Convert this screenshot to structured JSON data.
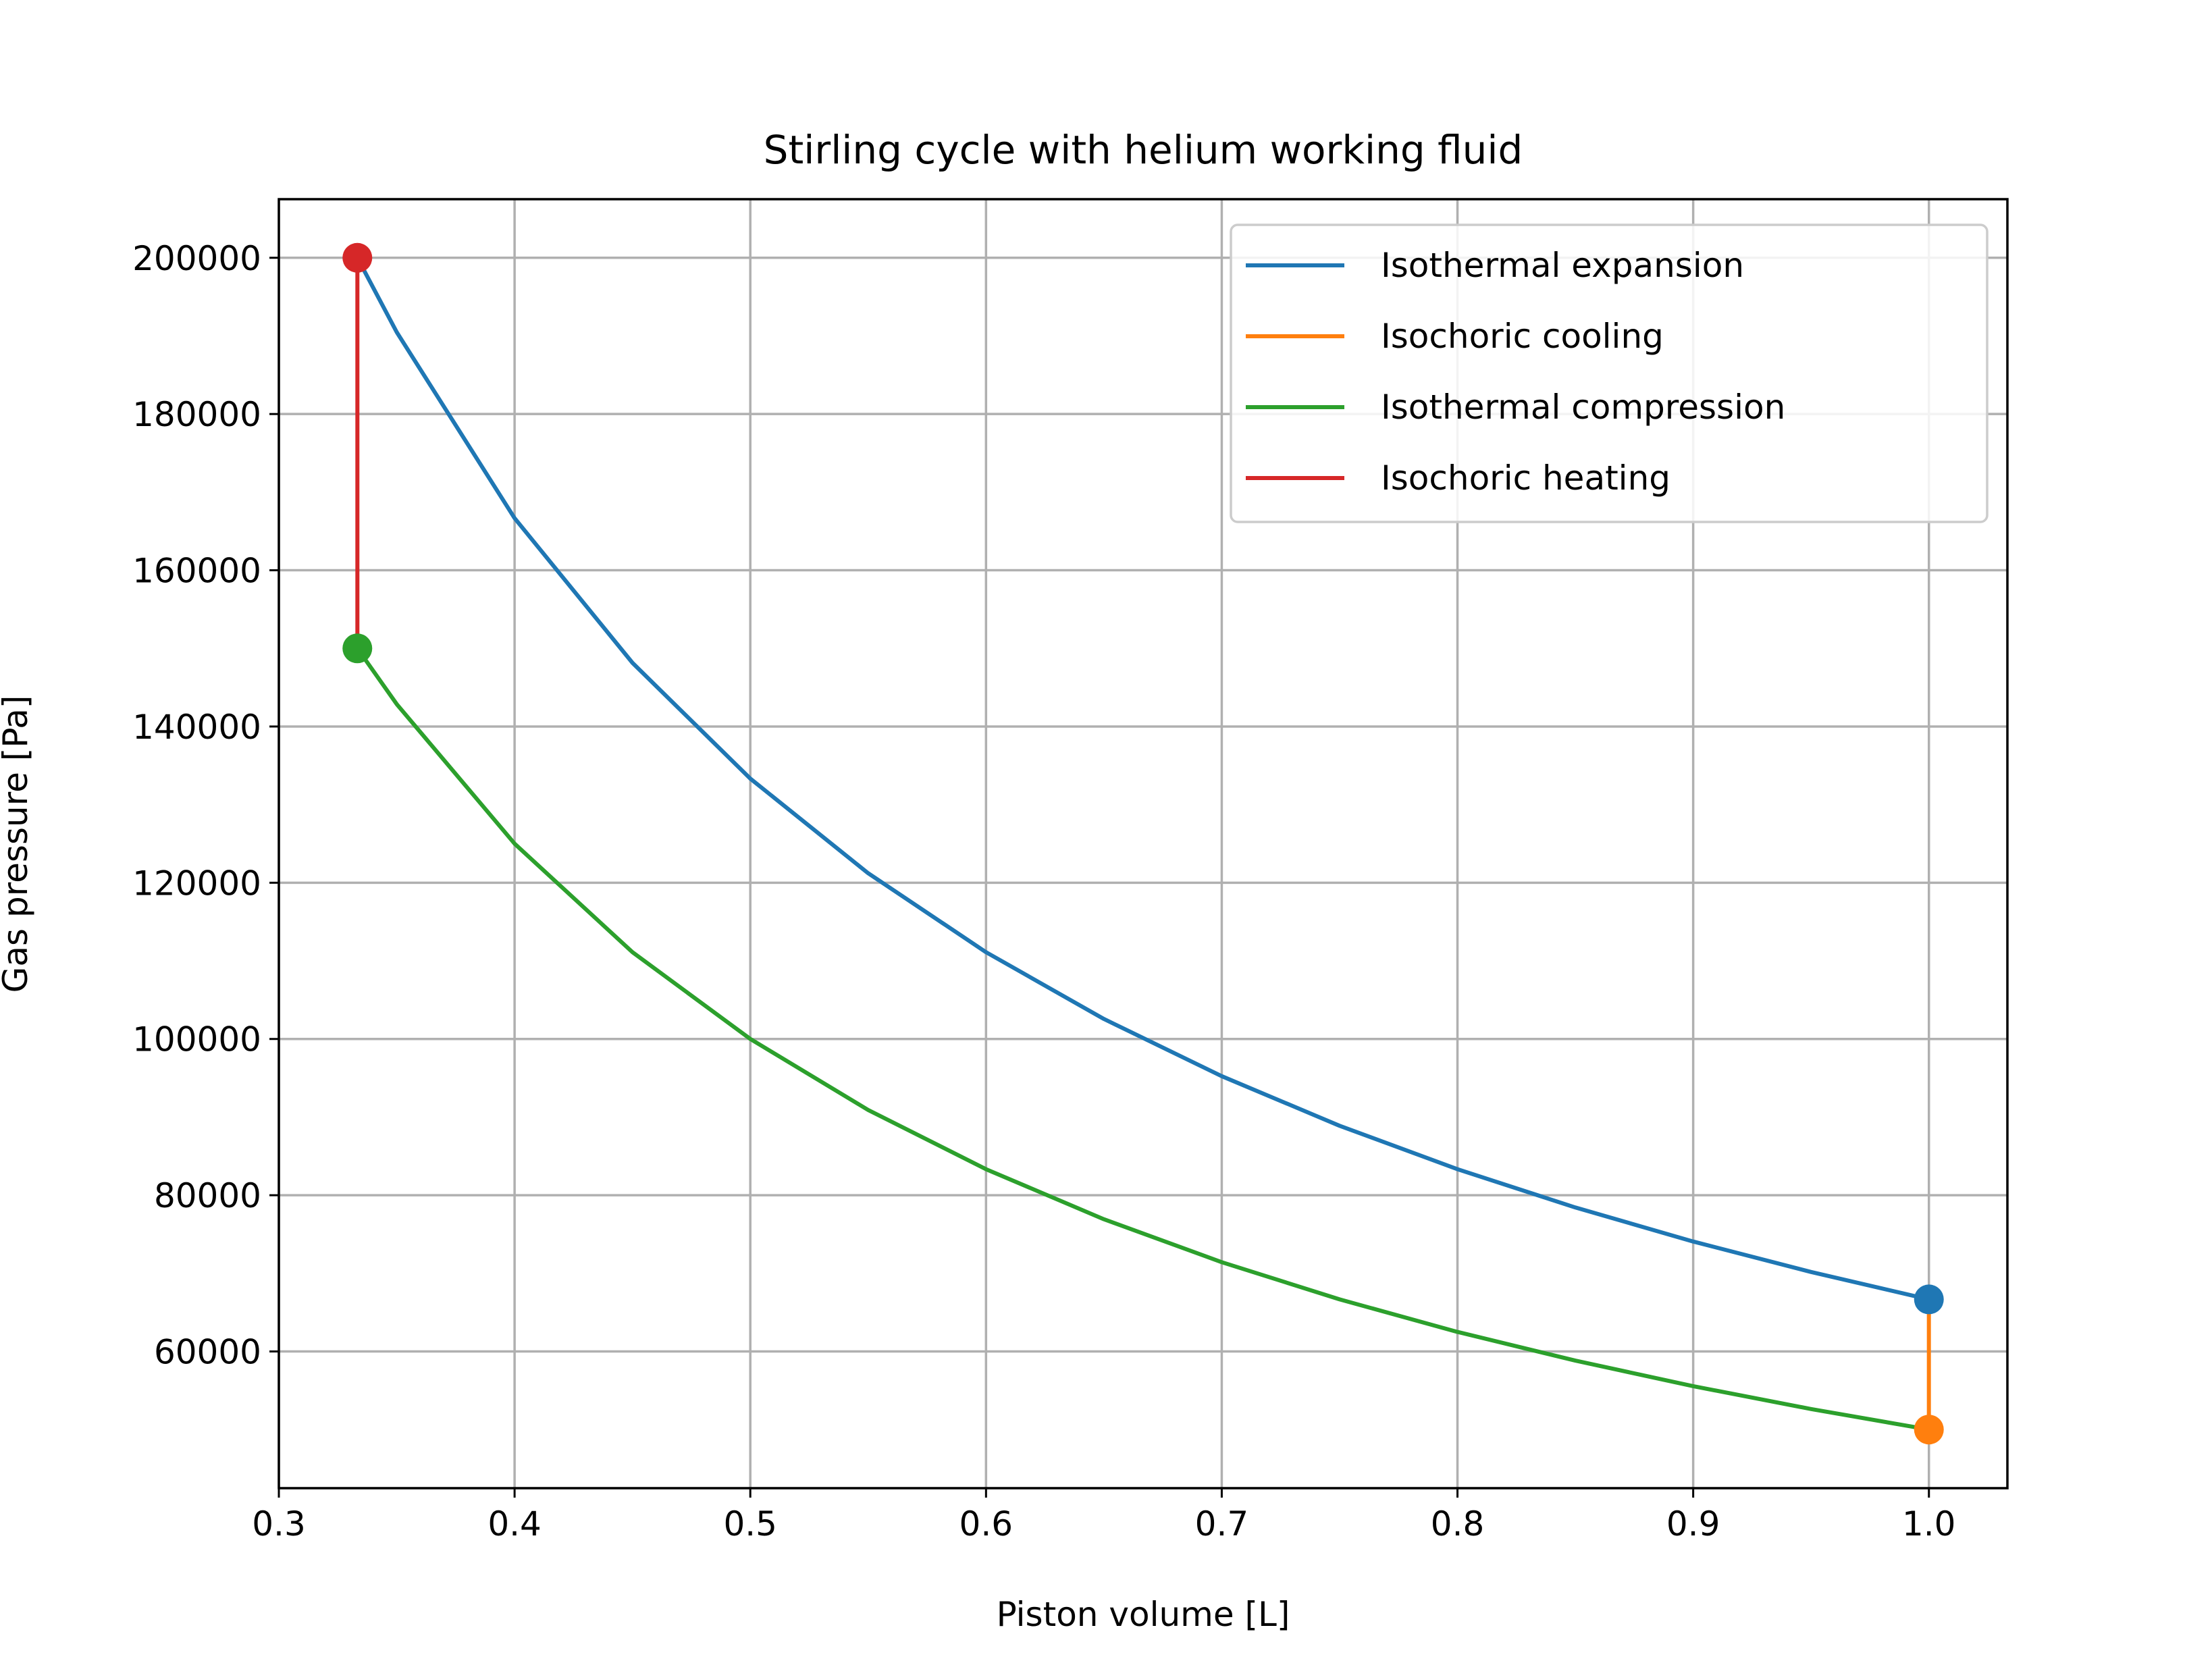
{
  "chart_data": {
    "type": "line",
    "title": "Stirling cycle with helium working fluid",
    "xlabel": "Piston volume [L]",
    "ylabel": "Gas pressure [Pa]",
    "xlim": [
      0.3,
      1.0333
    ],
    "ylim": [
      42500,
      207500
    ],
    "x_ticks": [
      0.3,
      0.4,
      0.5,
      0.6,
      0.7,
      0.8,
      0.9,
      1.0
    ],
    "x_tick_labels": [
      "0.3",
      "0.4",
      "0.5",
      "0.6",
      "0.7",
      "0.8",
      "0.9",
      "1.0"
    ],
    "y_ticks": [
      60000,
      80000,
      100000,
      120000,
      140000,
      160000,
      180000,
      200000
    ],
    "y_tick_labels": [
      "60000",
      "80000",
      "100000",
      "120000",
      "140000",
      "160000",
      "180000",
      "200000"
    ],
    "grid": true,
    "legend_position": "top-right",
    "series": [
      {
        "name": "Isothermal expansion",
        "color": "#1f77b4",
        "x": [
          0.3333,
          0.35,
          0.4,
          0.45,
          0.5,
          0.55,
          0.6,
          0.65,
          0.7,
          0.75,
          0.8,
          0.85,
          0.9,
          0.95,
          1.0
        ],
        "y": [
          200000,
          190476,
          166667,
          148148,
          133333,
          121212,
          111111,
          102564,
          95238,
          88889,
          83333,
          78431,
          74074,
          70175,
          66667
        ]
      },
      {
        "name": "Isochoric cooling",
        "color": "#ff7f0e",
        "x": [
          1.0,
          1.0
        ],
        "y": [
          66667,
          50000
        ]
      },
      {
        "name": "Isothermal compression",
        "color": "#2ca02c",
        "x": [
          1.0,
          0.95,
          0.9,
          0.85,
          0.8,
          0.75,
          0.7,
          0.65,
          0.6,
          0.55,
          0.5,
          0.45,
          0.4,
          0.35,
          0.3333
        ],
        "y": [
          50000,
          52632,
          55556,
          58824,
          62500,
          66667,
          71429,
          76923,
          83333,
          90909,
          100000,
          111111,
          125000,
          142857,
          150000
        ]
      },
      {
        "name": "Isochoric heating",
        "color": "#d62728",
        "x": [
          0.3333,
          0.3333
        ],
        "y": [
          150000,
          200000
        ]
      }
    ],
    "markers": [
      {
        "series": "Isothermal expansion",
        "x": 1.0,
        "y": 66667,
        "color": "#1f77b4"
      },
      {
        "series": "Isochoric cooling",
        "x": 1.0,
        "y": 50000,
        "color": "#ff7f0e"
      },
      {
        "series": "Isothermal compression",
        "x": 0.3333,
        "y": 150000,
        "color": "#2ca02c"
      },
      {
        "series": "Isochoric heating",
        "x": 0.3333,
        "y": 200000,
        "color": "#d62728"
      }
    ]
  }
}
